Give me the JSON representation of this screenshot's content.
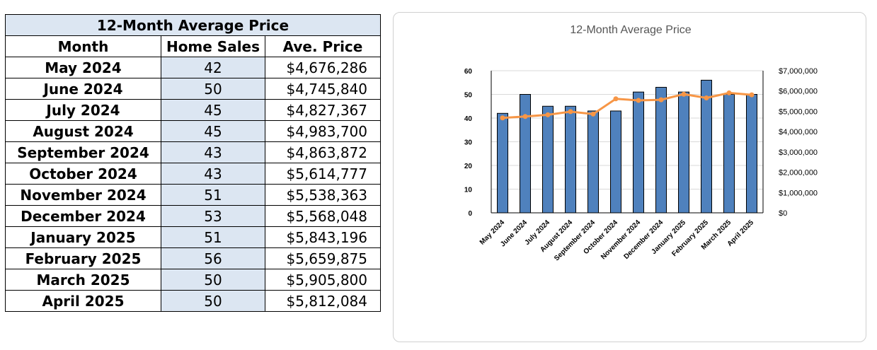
{
  "table": {
    "title": "12-Month Average Price",
    "headers": [
      "Month",
      "Home Sales",
      "Ave. Price"
    ],
    "rows": [
      {
        "month": "May 2024",
        "sales": "42",
        "price": "$4,676,286"
      },
      {
        "month": "June 2024",
        "sales": "50",
        "price": "$4,745,840"
      },
      {
        "month": "July 2024",
        "sales": "45",
        "price": "$4,827,367"
      },
      {
        "month": "August 2024",
        "sales": "45",
        "price": "$4,983,700"
      },
      {
        "month": "September 2024",
        "sales": "43",
        "price": "$4,863,872"
      },
      {
        "month": "October 2024",
        "sales": "43",
        "price": "$5,614,777"
      },
      {
        "month": "November 2024",
        "sales": "51",
        "price": "$5,538,363"
      },
      {
        "month": "December 2024",
        "sales": "53",
        "price": "$5,568,048"
      },
      {
        "month": "January 2025",
        "sales": "51",
        "price": "$5,843,196"
      },
      {
        "month": "February 2025",
        "sales": "56",
        "price": "$5,659,875"
      },
      {
        "month": "March 2025",
        "sales": "50",
        "price": "$5,905,800"
      },
      {
        "month": "April 2025",
        "sales": "50",
        "price": "$5,812,084"
      }
    ]
  },
  "colors": {
    "bar_fill": "#4f81bd",
    "bar_stroke": "#000000",
    "line": "#f79646",
    "grid": "#d9d9d9",
    "table_highlight": "#dce6f2"
  },
  "chart_data": {
    "type": "bar",
    "title": "12-Month Average Price",
    "categories": [
      "May 2024",
      "June 2024",
      "July 2024",
      "August 2024",
      "September 2024",
      "October 2024",
      "November 2024",
      "December 2024",
      "January 2025",
      "February 2025",
      "March 2025",
      "April 2025"
    ],
    "series": [
      {
        "type": "bar",
        "axis": "left",
        "values": [
          42,
          50,
          45,
          45,
          43,
          43,
          51,
          53,
          51,
          56,
          50,
          50
        ]
      },
      {
        "type": "line",
        "axis": "right",
        "values": [
          4676286,
          4745840,
          4827367,
          4983700,
          4863872,
          5614777,
          5538363,
          5568048,
          5843196,
          5659875,
          5905800,
          5812084
        ]
      }
    ],
    "ylim": [
      0,
      60
    ],
    "yticks": [
      "0",
      "10",
      "20",
      "30",
      "40",
      "50",
      "60"
    ],
    "y2lim": [
      0,
      7000000
    ],
    "y2ticks": [
      "$0",
      "$1,000,000",
      "$2,000,000",
      "$3,000,000",
      "$4,000,000",
      "$5,000,000",
      "$6,000,000",
      "$7,000,000"
    ],
    "grid": true,
    "legend": "none"
  }
}
